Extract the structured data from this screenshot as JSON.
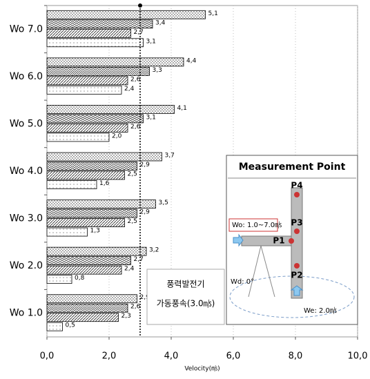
{
  "chart_data": {
    "type": "bar",
    "orientation": "horizontal",
    "categories": [
      "Wo 7.0",
      "Wo 6.0",
      "Wo 5.0",
      "Wo 4.0",
      "Wo 3.0",
      "Wo 2.0",
      "Wo 1.0"
    ],
    "series": [
      {
        "color": "#000000",
        "values": [
          5.1,
          4.4,
          4.1,
          3.7,
          3.5,
          3.2,
          2.9
        ],
        "value_labels": [
          "5,1",
          "4,4",
          "4,1",
          "3,7",
          "3,5",
          "3,2",
          "2,9"
        ]
      },
      {
        "color": "#000000",
        "values": [
          3.4,
          3.3,
          3.1,
          2.9,
          2.9,
          2.7,
          2.6
        ],
        "value_labels": [
          "3,4",
          "3,3",
          "3,1",
          "2,9",
          "2,9",
          "2,7",
          "2,6"
        ]
      },
      {
        "color": "#000000",
        "values": [
          2.7,
          2.6,
          2.6,
          2.5,
          2.5,
          2.4,
          2.3
        ],
        "value_labels": [
          "2,7",
          "2,6",
          "2,6",
          "2,5",
          "2,5",
          "2,4",
          "2,3"
        ]
      },
      {
        "color": "#000000",
        "values": [
          3.1,
          2.4,
          2.0,
          1.6,
          1.3,
          0.8,
          0.5
        ],
        "value_labels": [
          "3,1",
          "2,4",
          "2,0",
          "1,6",
          "1,3",
          "0,8",
          "0,5"
        ]
      }
    ],
    "xlim": [
      0,
      10
    ],
    "xticks": [
      {
        "value": 0,
        "label": "0,0"
      },
      {
        "value": 2,
        "label": "2,0"
      },
      {
        "value": 4,
        "label": "4,0"
      },
      {
        "value": 6,
        "label": "6,0"
      },
      {
        "value": 8,
        "label": "8,0"
      },
      {
        "value": 10,
        "label": "10,0"
      }
    ],
    "x_label": "Velocity(㎧)",
    "grid": true,
    "reference_x": 3,
    "reference_text": [
      "풍력발전기",
      "가동풍속(3.0㎧)"
    ]
  },
  "inset": {
    "title": "Measurement  Point",
    "wo": "Wo: 1.0~7.0㎧",
    "wd": "Wd: 0°",
    "we": "We: 2.0㎧",
    "p4": "P4",
    "p3": "P3",
    "p1": "P1",
    "p2": "P2"
  }
}
